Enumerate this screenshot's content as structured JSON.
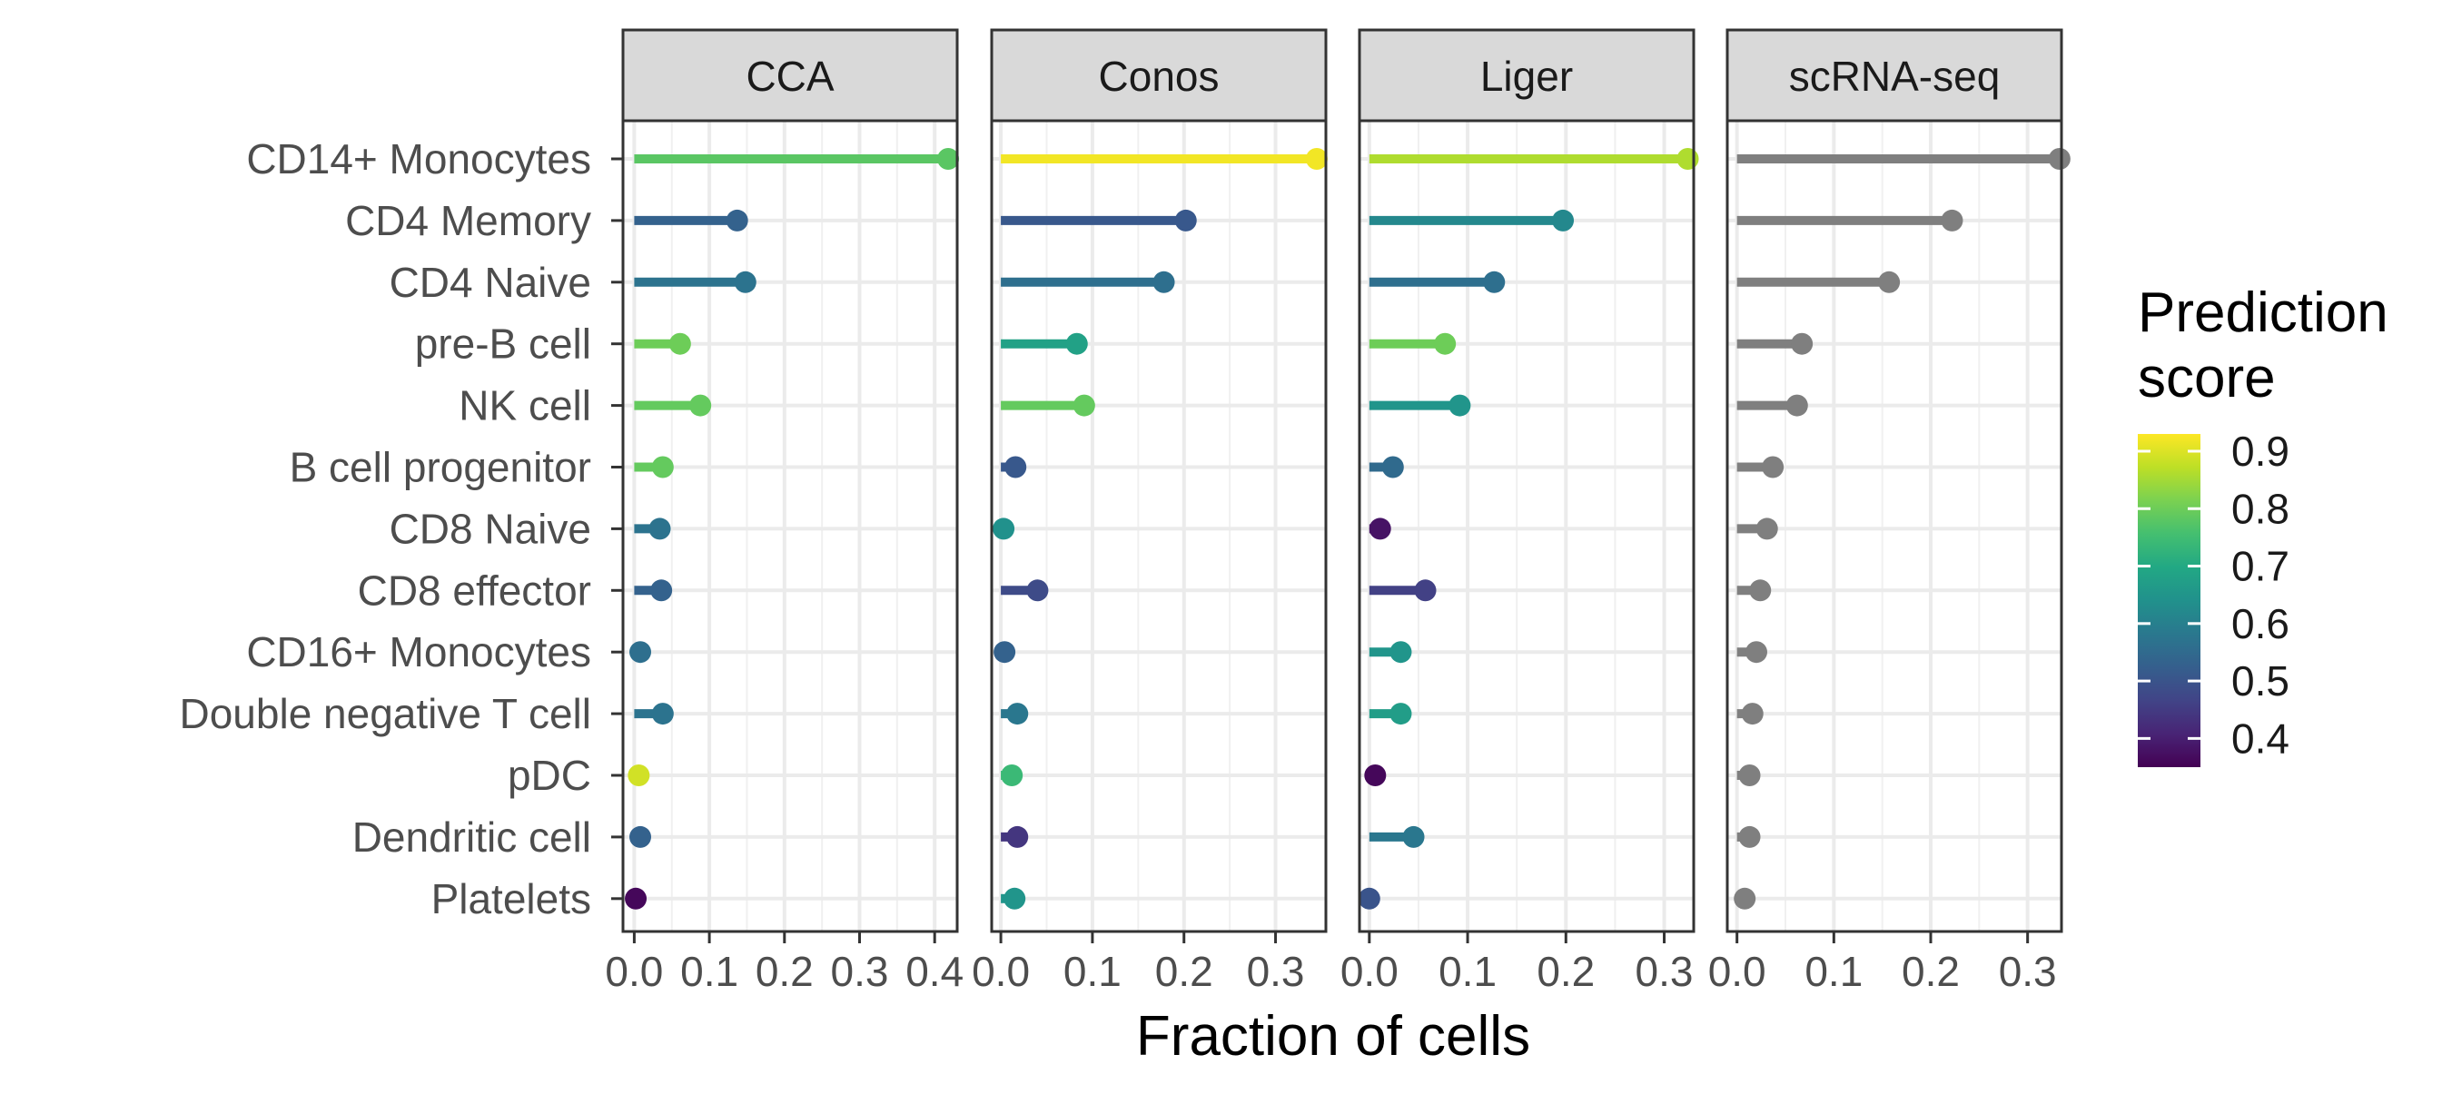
{
  "chart_data": {
    "type": "lollipop",
    "xlabel": "Fraction of cells",
    "legend": {
      "title_lines": [
        "Prediction",
        "score"
      ],
      "ticks": [
        0.9,
        0.8,
        0.7,
        0.6,
        0.5,
        0.4
      ],
      "range": [
        0.35,
        0.93
      ],
      "placement": "right",
      "colormap": "viridis"
    },
    "grid": true,
    "categories": [
      "CD14+ Monocytes",
      "CD4 Memory",
      "CD4 Naive",
      "pre-B cell",
      "NK cell",
      "B cell progenitor",
      "CD8 Naive",
      "CD8 effector",
      "CD16+ Monocytes",
      "Double negative T cell",
      "pDC",
      "Dendritic cell",
      "Platelets"
    ],
    "panels": [
      {
        "name": "CCA",
        "xlim": [
          -0.015,
          0.43
        ],
        "xticks": [
          0.0,
          0.1,
          0.2,
          0.3,
          0.4
        ],
        "xtick_labels": [
          "0.0",
          "0.1",
          "0.2",
          "0.3",
          "0.4"
        ],
        "values": [
          0.418,
          0.137,
          0.148,
          0.061,
          0.088,
          0.038,
          0.034,
          0.036,
          0.008,
          0.038,
          0.006,
          0.008,
          0.002
        ],
        "scores": [
          0.78,
          0.53,
          0.57,
          0.8,
          0.79,
          0.79,
          0.57,
          0.53,
          0.56,
          0.57,
          0.89,
          0.53,
          0.36
        ]
      },
      {
        "name": "Conos",
        "xlim": [
          -0.01,
          0.355
        ],
        "xticks": [
          0.0,
          0.1,
          0.2,
          0.3
        ],
        "xtick_labels": [
          "0.0",
          "0.1",
          "0.2",
          "0.3"
        ],
        "values": [
          0.345,
          0.202,
          0.178,
          0.083,
          0.091,
          0.016,
          0.003,
          0.04,
          0.004,
          0.018,
          0.012,
          0.018,
          0.015
        ],
        "scores": [
          0.92,
          0.51,
          0.56,
          0.68,
          0.79,
          0.51,
          0.64,
          0.48,
          0.53,
          0.58,
          0.74,
          0.44,
          0.65
        ]
      },
      {
        "name": "Liger",
        "xlim": [
          -0.01,
          0.33
        ],
        "xticks": [
          0.0,
          0.1,
          0.2,
          0.3
        ],
        "xtick_labels": [
          "0.0",
          "0.1",
          "0.2",
          "0.3"
        ],
        "values": [
          0.324,
          0.197,
          0.127,
          0.077,
          0.092,
          0.024,
          0.011,
          0.057,
          0.032,
          0.032,
          0.006,
          0.045,
          0.0
        ],
        "scores": [
          0.86,
          0.62,
          0.56,
          0.8,
          0.65,
          0.55,
          0.38,
          0.46,
          0.65,
          0.67,
          0.36,
          0.58,
          0.5
        ]
      },
      {
        "name": "scRNA-seq",
        "xlim": [
          -0.01,
          0.335
        ],
        "xticks": [
          0.0,
          0.1,
          0.2,
          0.3
        ],
        "xtick_labels": [
          "0.0",
          "0.1",
          "0.2",
          "0.3"
        ],
        "values": [
          0.333,
          0.222,
          0.157,
          0.067,
          0.062,
          0.037,
          0.031,
          0.024,
          0.02,
          0.016,
          0.013,
          0.013,
          0.008
        ],
        "color": "#7f7f7f"
      }
    ]
  }
}
